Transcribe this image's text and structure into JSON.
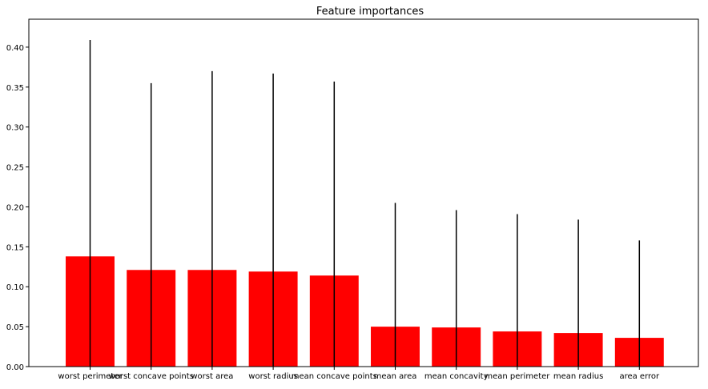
{
  "chart_data": {
    "type": "bar",
    "title": "Feature importances",
    "xlabel": "",
    "ylabel": "",
    "categories": [
      "worst perimeter",
      "worst concave points",
      "worst area",
      "worst radius",
      "mean concave points",
      "mean area",
      "mean concavity",
      "mean perimeter",
      "mean radius",
      "area error"
    ],
    "values": [
      0.138,
      0.121,
      0.121,
      0.119,
      0.114,
      0.05,
      0.049,
      0.044,
      0.042,
      0.036
    ],
    "error_upper": [
      0.409,
      0.355,
      0.37,
      0.367,
      0.357,
      0.205,
      0.196,
      0.191,
      0.184,
      0.158
    ],
    "ylim": [
      0,
      0.435
    ],
    "yticks": [
      "0.00",
      "0.05",
      "0.10",
      "0.15",
      "0.20",
      "0.25",
      "0.30",
      "0.35",
      "0.40"
    ],
    "grid": false,
    "colors": {
      "bar": "#ff0000",
      "error_bar": "#000000",
      "axes": "#000000"
    }
  }
}
